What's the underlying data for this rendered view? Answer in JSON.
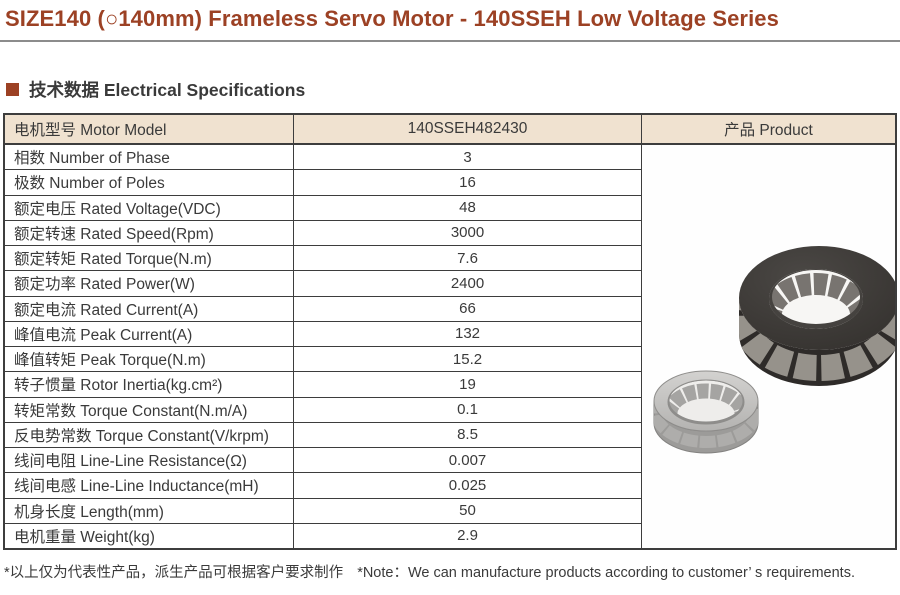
{
  "header": {
    "title": "SIZE140 (○140mm) Frameless Servo Motor - 140SSEH Low Voltage Series",
    "section_title": "技术数据 Electrical Specifications"
  },
  "table": {
    "columns": {
      "model_label": "电机型号 Motor Model",
      "model_value": "140SSEH482430",
      "product_label": "产品 Product"
    },
    "rows": [
      {
        "label": "相数 Number of Phase",
        "value": "3"
      },
      {
        "label": "极数 Number of Poles",
        "value": "16"
      },
      {
        "label": "额定电压 Rated Voltage(VDC)",
        "value": "48"
      },
      {
        "label": "额定转速 Rated Speed(Rpm)",
        "value": "3000"
      },
      {
        "label": "额定转矩 Rated Torque(N.m)",
        "value": "7.6"
      },
      {
        "label": "额定功率 Rated Power(W)",
        "value": "2400"
      },
      {
        "label": "额定电流 Rated Current(A)",
        "value": "66"
      },
      {
        "label": "峰值电流 Peak Current(A)",
        "value": "132"
      },
      {
        "label": "峰值转矩 Peak Torque(N.m)",
        "value": "15.2"
      },
      {
        "label": "转子惯量 Rotor Inertia(kg.cm²)",
        "value": "19"
      },
      {
        "label": "转矩常数 Torque Constant(N.m/A)",
        "value": "0.1"
      },
      {
        "label": "反电势常数 Torque Constant(V/krpm)",
        "value": "8.5"
      },
      {
        "label": "线间电阻 Line-Line Resistance(Ω)",
        "value": "0.007"
      },
      {
        "label": "线间电感 Line-Line Inductance(mH)",
        "value": "0.025"
      },
      {
        "label": "机身长度 Length(mm)",
        "value": "50"
      },
      {
        "label": "电机重量 Weight(kg)",
        "value": "2.9"
      }
    ]
  },
  "product_image": {
    "alt": "140SSEH frameless servo motor stator ring and rotor ring"
  },
  "footnote": {
    "cn": "*以上仅为代表性产品，派生产品可根据客户要求制作",
    "en": "*Note：We can manufacture products according to customer’ s requirements."
  },
  "colors": {
    "accent": "#9c4124",
    "table_header_bg": "#f0e2d0",
    "border": "#3d3d3d",
    "text": "#3a3a3a"
  }
}
